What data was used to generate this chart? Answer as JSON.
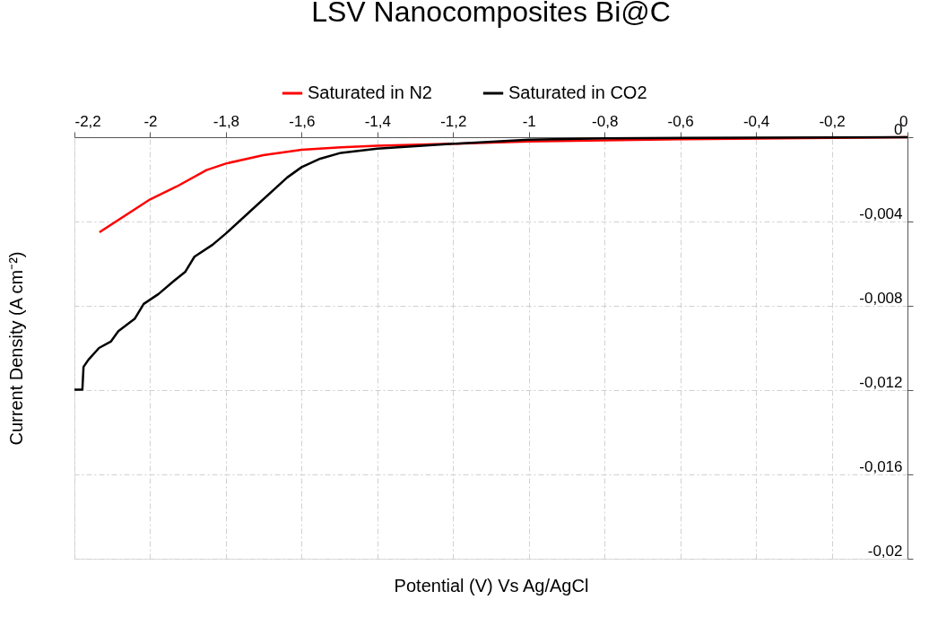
{
  "chart_data": {
    "type": "line",
    "title": "LSV Nanocomposites Bi@C",
    "xlabel": "Potential (V) Vs Ag/AgCl",
    "ylabel": "Current Density (A cm⁻²)",
    "series": [
      {
        "name": "Saturated in N2",
        "color": "#ff0000",
        "x": [
          -2.134,
          -2.0,
          -1.93,
          -1.851,
          -1.8,
          -1.701,
          -1.6,
          -1.496,
          -1.4,
          -1.2,
          -1.0,
          -0.6,
          -0.2,
          0
        ],
        "values": [
          -0.00451,
          -0.00295,
          -0.00234,
          -0.00156,
          -0.00125,
          -0.00085,
          -0.0006,
          -0.00048,
          -0.0004,
          -0.00031,
          -0.0002,
          -0.0001,
          -3e-05,
          0
        ]
      },
      {
        "name": "Saturated in CO2",
        "color": "#000000",
        "x": [
          -2.2,
          -2.179,
          -2.176,
          -2.163,
          -2.135,
          -2.104,
          -2.084,
          -2.041,
          -2.017,
          -1.978,
          -1.938,
          -1.907,
          -1.883,
          -1.835,
          -1.8,
          -1.733,
          -1.638,
          -1.6,
          -1.551,
          -1.496,
          -1.4,
          -1.2,
          -1.0,
          -0.8,
          -0.4,
          0
        ],
        "values": [
          -0.01198,
          -0.01198,
          -0.0109,
          -0.01056,
          -0.01,
          -0.0097,
          -0.0092,
          -0.00862,
          -0.00791,
          -0.00744,
          -0.00683,
          -0.00638,
          -0.00567,
          -0.0051,
          -0.00457,
          -0.00347,
          -0.00191,
          -0.00142,
          -0.00102,
          -0.00074,
          -0.00054,
          -0.00031,
          -0.00012,
          -5e-05,
          -2e-05,
          0
        ]
      }
    ],
    "xlim": [
      -2.2,
      0
    ],
    "ylim": [
      -0.02,
      0
    ],
    "xticks": [
      {
        "value": -2.2,
        "label": "-2,2"
      },
      {
        "value": -2,
        "label": "-2"
      },
      {
        "value": -1.8,
        "label": "-1,8"
      },
      {
        "value": -1.6,
        "label": "-1,6"
      },
      {
        "value": -1.4,
        "label": "-1,4"
      },
      {
        "value": -1.2,
        "label": "-1,2"
      },
      {
        "value": -1,
        "label": "-1"
      },
      {
        "value": -0.8,
        "label": "-0,8"
      },
      {
        "value": -0.6,
        "label": "-0,6"
      },
      {
        "value": -0.4,
        "label": "-0,4"
      },
      {
        "value": -0.2,
        "label": "-0,2"
      },
      0
    ],
    "yticks": [
      0,
      {
        "value": -0.004,
        "label": "-0,004"
      },
      {
        "value": -0.008,
        "label": "-0,008"
      },
      {
        "value": -0.012,
        "label": "-0,012"
      },
      {
        "value": -0.016,
        "label": "-0,016"
      },
      {
        "value": -0.02,
        "label": "-0,02"
      }
    ],
    "grid": true,
    "legend": "top",
    "line_style": "solid",
    "marker": "none"
  }
}
